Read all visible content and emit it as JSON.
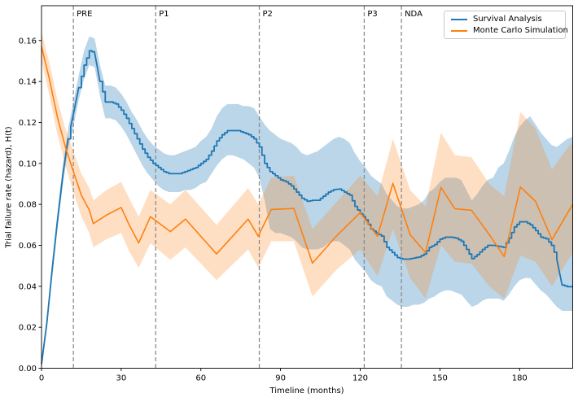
{
  "figure": {
    "background": "#ffffff"
  },
  "chart_data": {
    "type": "line",
    "title": "",
    "xlabel": "Timeline (months)",
    "ylabel": "Trial failure rate (hazard), H(t)",
    "xlim": [
      0,
      200
    ],
    "ylim": [
      0,
      0.177
    ],
    "xticks": [
      0,
      30,
      60,
      90,
      120,
      150,
      180
    ],
    "yticks": [
      0.0,
      0.02,
      0.04,
      0.06,
      0.08,
      0.1,
      0.12,
      0.14,
      0.16
    ],
    "grid": false,
    "legend_position": "upper right",
    "milestone_line_color": "#8c8c8c",
    "milestones": [
      {
        "label": "PRE",
        "month": 12
      },
      {
        "label": "P1",
        "month": 43
      },
      {
        "label": "P2",
        "month": 82
      },
      {
        "label": "P3",
        "month": 121.5
      },
      {
        "label": "NDA",
        "month": 135.5
      }
    ],
    "series": [
      {
        "name": "Survival Analysis",
        "color": "#1f77b4",
        "band_opacity": 0.3,
        "style": "step",
        "x_start": 0,
        "x_interval": 2,
        "y": [
          0.002,
          0.022,
          0.048,
          0.072,
          0.094,
          0.112,
          0.124,
          0.137,
          0.148,
          0.155,
          0.154,
          0.14,
          0.13,
          0.13,
          0.129,
          0.126,
          0.122,
          0.117,
          0.112,
          0.107,
          0.103,
          0.1,
          0.098,
          0.096,
          0.095,
          0.095,
          0.095,
          0.096,
          0.097,
          0.098,
          0.1,
          0.102,
          0.106,
          0.111,
          0.114,
          0.116,
          0.116,
          0.116,
          0.115,
          0.114,
          0.112,
          0.108,
          0.1,
          0.096,
          0.094,
          0.092,
          0.091,
          0.089,
          0.086,
          0.083,
          0.0815,
          0.082,
          0.082,
          0.084,
          0.086,
          0.0872,
          0.0875,
          0.086,
          0.0845,
          0.079,
          0.0755,
          0.0725,
          0.068,
          0.066,
          0.0645,
          0.059,
          0.0565,
          0.054,
          0.0533,
          0.0533,
          0.0538,
          0.0543,
          0.0557,
          0.059,
          0.0604,
          0.063,
          0.064,
          0.064,
          0.0635,
          0.062,
          0.058,
          0.0535,
          0.0555,
          0.058,
          0.06,
          0.06,
          0.0595,
          0.059,
          0.0635,
          0.069,
          0.0715,
          0.0715,
          0.07,
          0.0672,
          0.064,
          0.0632,
          0.06,
          0.0533,
          0.0406,
          0.0398,
          0.0398
        ],
        "lo": [
          0.001,
          0.019,
          0.044,
          0.068,
          0.089,
          0.107,
          0.118,
          0.131,
          0.141,
          0.148,
          0.147,
          0.133,
          0.122,
          0.122,
          0.121,
          0.118,
          0.114,
          0.109,
          0.104,
          0.099,
          0.095,
          0.092,
          0.089,
          0.087,
          0.086,
          0.086,
          0.086,
          0.087,
          0.087,
          0.088,
          0.09,
          0.091,
          0.095,
          0.099,
          0.102,
          0.104,
          0.104,
          0.103,
          0.102,
          0.1,
          0.098,
          0.093,
          0.082,
          0.068,
          0.066,
          0.066,
          0.065,
          0.064,
          0.062,
          0.059,
          0.058,
          0.058,
          0.058,
          0.059,
          0.061,
          0.062,
          0.062,
          0.06,
          0.058,
          0.053,
          0.05,
          0.047,
          0.043,
          0.041,
          0.04,
          0.035,
          0.033,
          0.031,
          0.03,
          0.03,
          0.031,
          0.031,
          0.032,
          0.034,
          0.035,
          0.037,
          0.038,
          0.038,
          0.037,
          0.036,
          0.033,
          0.03,
          0.031,
          0.033,
          0.034,
          0.034,
          0.034,
          0.033,
          0.036,
          0.04,
          0.043,
          0.044,
          0.044,
          0.041,
          0.038,
          0.036,
          0.033,
          0.03,
          0.028,
          0.028,
          0.028
        ],
        "hi": [
          0.004,
          0.025,
          0.052,
          0.076,
          0.099,
          0.117,
          0.13,
          0.143,
          0.155,
          0.162,
          0.161,
          0.148,
          0.138,
          0.138,
          0.137,
          0.134,
          0.13,
          0.125,
          0.121,
          0.116,
          0.112,
          0.109,
          0.107,
          0.105,
          0.104,
          0.104,
          0.105,
          0.106,
          0.107,
          0.108,
          0.111,
          0.113,
          0.117,
          0.123,
          0.127,
          0.129,
          0.129,
          0.129,
          0.128,
          0.128,
          0.127,
          0.123,
          0.119,
          0.116,
          0.114,
          0.112,
          0.111,
          0.11,
          0.108,
          0.105,
          0.104,
          0.105,
          0.106,
          0.108,
          0.11,
          0.112,
          0.113,
          0.112,
          0.11,
          0.105,
          0.101,
          0.098,
          0.094,
          0.092,
          0.09,
          0.085,
          0.082,
          0.079,
          0.078,
          0.078,
          0.079,
          0.08,
          0.082,
          0.086,
          0.088,
          0.091,
          0.093,
          0.093,
          0.093,
          0.092,
          0.087,
          0.082,
          0.085,
          0.089,
          0.092,
          0.093,
          0.098,
          0.1,
          0.106,
          0.113,
          0.118,
          0.121,
          0.123,
          0.119,
          0.115,
          0.112,
          0.109,
          0.108,
          0.11,
          0.112,
          0.113
        ]
      },
      {
        "name": "Monte Carlo Simulation",
        "color": "#ff7f0e",
        "band_opacity": 0.25,
        "style": "linear",
        "x": [
          0,
          3,
          6,
          9,
          12,
          15,
          18,
          19.5,
          24.5,
          30,
          33,
          36.6,
          41,
          48.5,
          54.2,
          65.9,
          77.8,
          81.6,
          86.5,
          95,
          102,
          111,
          120,
          126.5,
          132.3,
          138.8,
          144.6,
          150.4,
          155.6,
          161.9,
          168.6,
          174.2,
          180.3,
          186,
          192.2,
          198.3,
          200
        ],
        "y": [
          0.157,
          0.141,
          0.1225,
          0.108,
          0.096,
          0.0845,
          0.0772,
          0.0706,
          0.0748,
          0.0785,
          0.07,
          0.0612,
          0.074,
          0.0667,
          0.0728,
          0.0558,
          0.0728,
          0.0645,
          0.0775,
          0.078,
          0.0513,
          0.0645,
          0.076,
          0.0644,
          0.0903,
          0.0652,
          0.0565,
          0.0883,
          0.0779,
          0.0771,
          0.0652,
          0.0545,
          0.0885,
          0.0815,
          0.0628,
          0.0763,
          0.08
        ],
        "lo": [
          0.15,
          0.133,
          0.114,
          0.099,
          0.086,
          0.074,
          0.066,
          0.059,
          0.063,
          0.066,
          0.057,
          0.049,
          0.061,
          0.053,
          0.059,
          0.043,
          0.058,
          0.049,
          0.062,
          0.062,
          0.035,
          0.048,
          0.058,
          0.045,
          0.068,
          0.044,
          0.034,
          0.06,
          0.052,
          0.051,
          0.04,
          0.034,
          0.055,
          0.052,
          0.04,
          0.053,
          0.056
        ],
        "hi": [
          0.164,
          0.149,
          0.131,
          0.117,
          0.106,
          0.095,
          0.088,
          0.082,
          0.087,
          0.091,
          0.083,
          0.074,
          0.087,
          0.08,
          0.087,
          0.07,
          0.088,
          0.08,
          0.093,
          0.094,
          0.068,
          0.081,
          0.094,
          0.084,
          0.112,
          0.087,
          0.079,
          0.115,
          0.104,
          0.103,
          0.09,
          0.084,
          0.125,
          0.117,
          0.097,
          0.108,
          0.11
        ]
      }
    ]
  },
  "legend": {
    "items": [
      {
        "label": "Survival Analysis",
        "color": "#1f77b4"
      },
      {
        "label": "Monte Carlo Simulation",
        "color": "#ff7f0e"
      }
    ]
  }
}
